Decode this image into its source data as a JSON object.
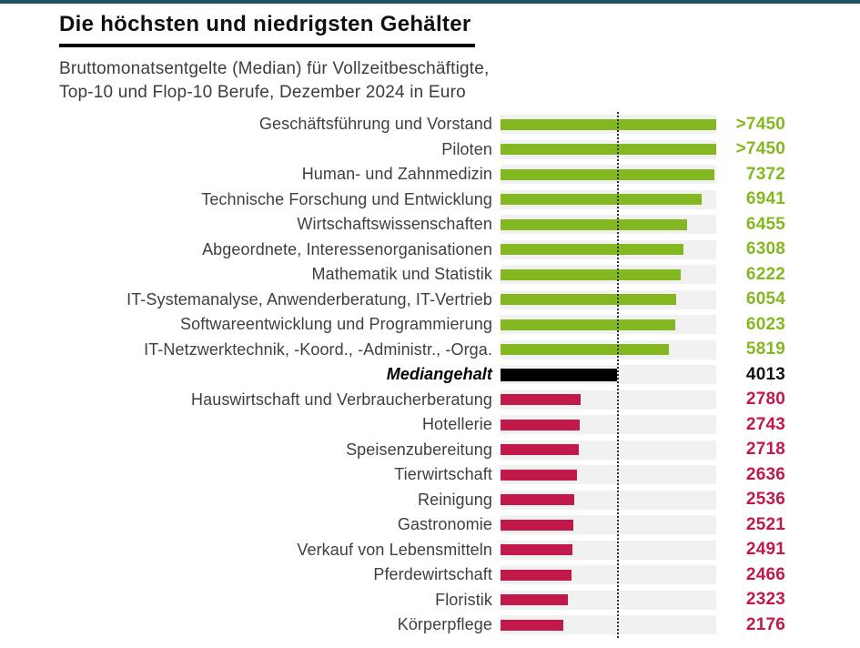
{
  "page": {
    "top_border_color": "#215263",
    "background_color": "#ffffff"
  },
  "header": {
    "title": "Die höchsten und niedrigsten Gehälter",
    "subtitle_line1": "Bruttomonatsentgelte (Median) für Vollzeitbeschäftigte,",
    "subtitle_line2": "Top-10 und Flop-10 Berufe, Dezember 2024 in Euro"
  },
  "chart_data": {
    "type": "bar",
    "orientation": "horizontal",
    "value_unit": "Euro",
    "xlim": [
      0,
      7450
    ],
    "median_line_value": 4013,
    "grid": false,
    "colors": {
      "top_bar": "#84b821",
      "top_value_text": "#84b821",
      "flop_bar": "#c0194a",
      "flop_value_text": "#c0194a",
      "median_bar": "#000000",
      "median_value_text": "#111111",
      "track": "#f1f1f1",
      "label_text": "#3f3f3f"
    },
    "rows": [
      {
        "label": "Geschäftsführung und Vorstand",
        "value": 7450,
        "display": ">7450",
        "group": "top"
      },
      {
        "label": "Piloten",
        "value": 7450,
        "display": ">7450",
        "group": "top"
      },
      {
        "label": "Human- und Zahnmedizin",
        "value": 7372,
        "display": "7372",
        "group": "top"
      },
      {
        "label": "Technische Forschung und Entwicklung",
        "value": 6941,
        "display": "6941",
        "group": "top"
      },
      {
        "label": "Wirtschaftswissenschaften",
        "value": 6455,
        "display": "6455",
        "group": "top"
      },
      {
        "label": "Abgeordnete, Interessenorganisationen",
        "value": 6308,
        "display": "6308",
        "group": "top"
      },
      {
        "label": "Mathematik und Statistik",
        "value": 6222,
        "display": "6222",
        "group": "top"
      },
      {
        "label": "IT-Systemanalyse, Anwenderberatung, IT-Vertrieb",
        "value": 6054,
        "display": "6054",
        "group": "top"
      },
      {
        "label": "Softwareentwicklung und Programmierung",
        "value": 6023,
        "display": "6023",
        "group": "top"
      },
      {
        "label": "IT-Netzwerktechnik, -Koord., -Administr., -Orga.",
        "value": 5819,
        "display": "5819",
        "group": "top"
      },
      {
        "label": "Mediangehalt",
        "value": 4013,
        "display": "4013",
        "group": "median"
      },
      {
        "label": "Hauswirtschaft und Verbraucherberatung",
        "value": 2780,
        "display": "2780",
        "group": "flop"
      },
      {
        "label": "Hotellerie",
        "value": 2743,
        "display": "2743",
        "group": "flop"
      },
      {
        "label": "Speisenzubereitung",
        "value": 2718,
        "display": "2718",
        "group": "flop"
      },
      {
        "label": "Tierwirtschaft",
        "value": 2636,
        "display": "2636",
        "group": "flop"
      },
      {
        "label": "Reinigung",
        "value": 2536,
        "display": "2536",
        "group": "flop"
      },
      {
        "label": "Gastronomie",
        "value": 2521,
        "display": "2521",
        "group": "flop"
      },
      {
        "label": "Verkauf von Lebensmitteln",
        "value": 2491,
        "display": "2491",
        "group": "flop"
      },
      {
        "label": "Pferdewirtschaft",
        "value": 2466,
        "display": "2466",
        "group": "flop"
      },
      {
        "label": "Floristik",
        "value": 2323,
        "display": "2323",
        "group": "flop"
      },
      {
        "label": "Körperpflege",
        "value": 2176,
        "display": "2176",
        "group": "flop"
      }
    ]
  }
}
